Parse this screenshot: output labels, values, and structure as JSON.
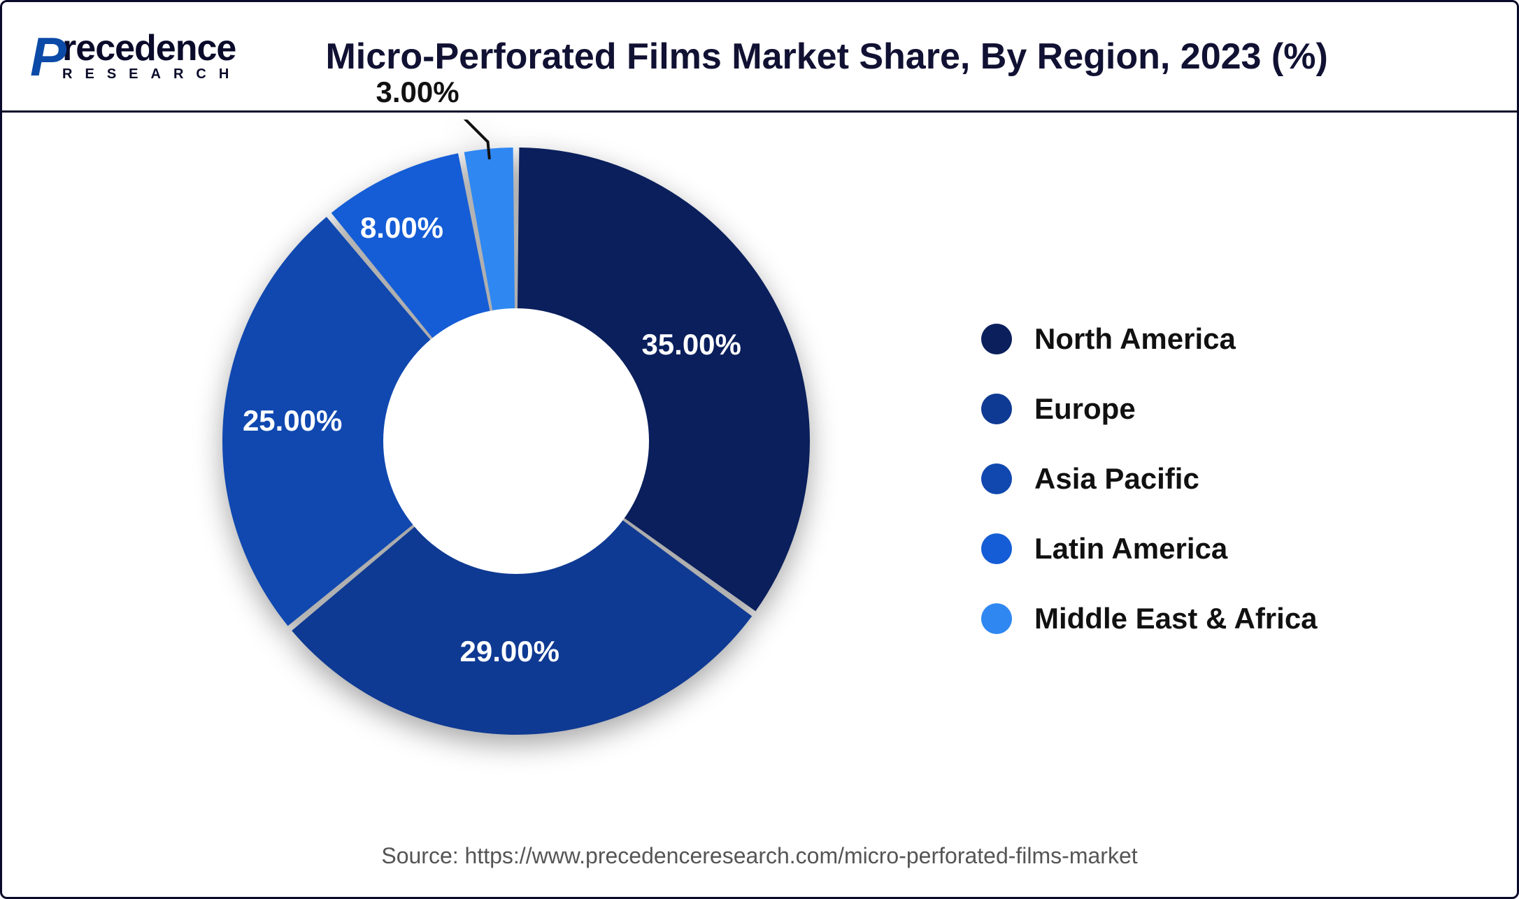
{
  "logo": {
    "brand_p": "P",
    "brand_rest": "recedence",
    "sub": "RESEARCH"
  },
  "title": "Micro-Perforated Films Market Share, By Region, 2023 (%)",
  "chart": {
    "type": "donut",
    "inner_radius_ratio": 0.42,
    "background_color": "#ffffff",
    "shadow_color": "rgba(0,0,0,0.35)",
    "slices": [
      {
        "name": "North America",
        "value": 35.0,
        "label": "35.00%",
        "color": "#0a1f5c",
        "text_color": "light"
      },
      {
        "name": "Europe",
        "value": 29.0,
        "label": "29.00%",
        "color": "#0f3a93",
        "text_color": "light"
      },
      {
        "name": "Asia Pacific",
        "value": 25.0,
        "label": "25.00%",
        "color": "#1048b0",
        "text_color": "light"
      },
      {
        "name": "Latin America",
        "value": 8.0,
        "label": "8.00%",
        "color": "#155dd6",
        "text_color": "light"
      },
      {
        "name": "Middle East & Africa",
        "value": 3.0,
        "label": "3.00%",
        "color": "#2f87f2",
        "text_color": "dark",
        "callout": true
      }
    ],
    "label_fontsize": 42,
    "legend_fontsize": 42,
    "title_fontsize": 52
  },
  "source": "Source:  https://www.precedenceresearch.com/micro-perforated-films-market"
}
